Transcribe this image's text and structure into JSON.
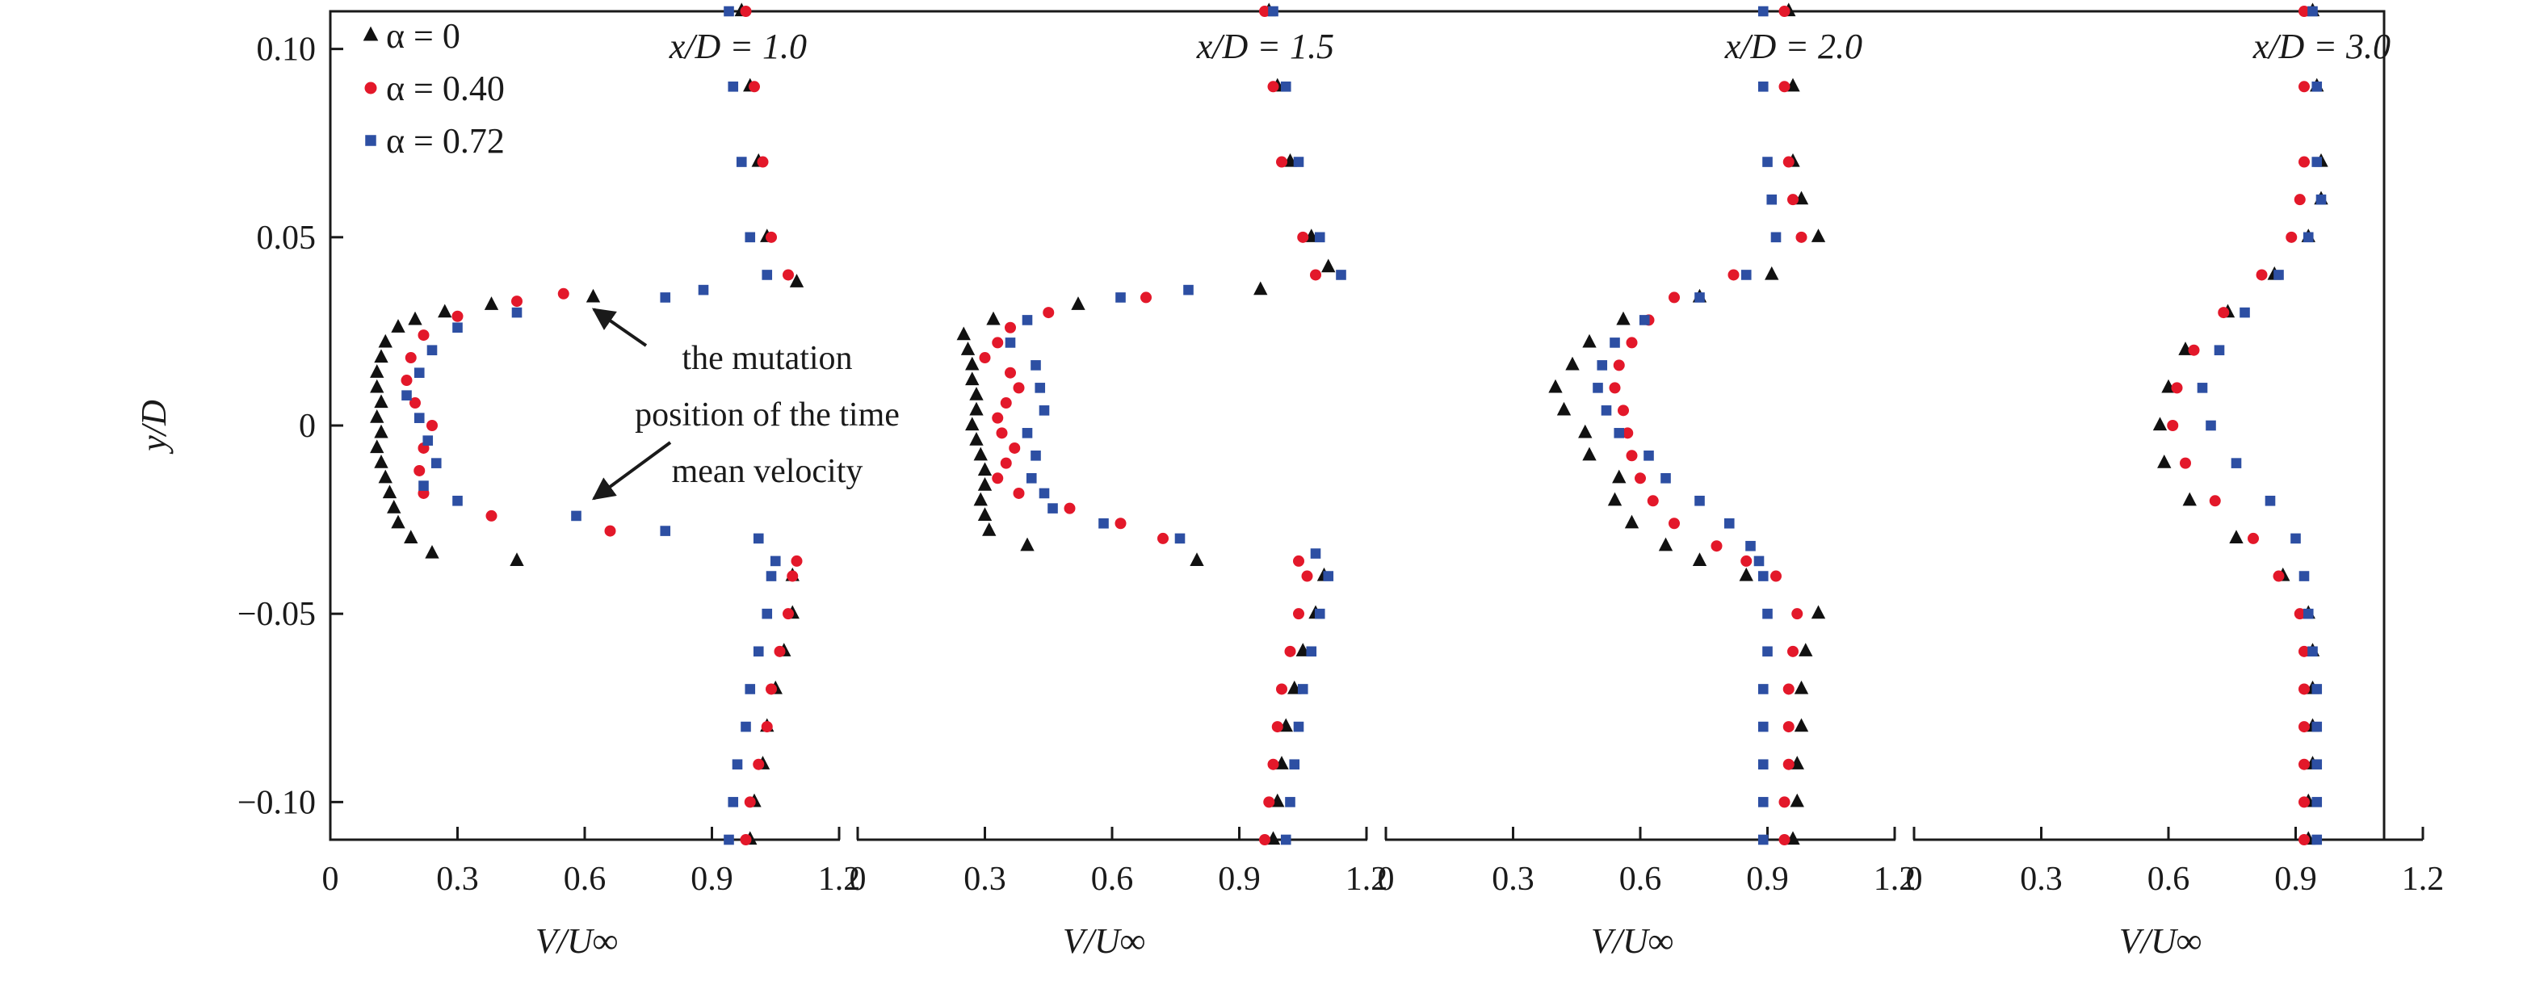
{
  "chart_data": {
    "type": "scatter",
    "title": "",
    "ylabel": "y/D",
    "ylim": [
      -0.11,
      0.11
    ],
    "yticks": [
      -0.1,
      -0.05,
      0,
      0.05,
      0.1
    ],
    "ytick_labels": [
      "−0.10",
      "−0.05",
      "0",
      "0.05",
      "0.10"
    ],
    "legend_position": "top-left",
    "series_styles": [
      {
        "name": "α = 0",
        "marker": "triangle",
        "color": "#111111"
      },
      {
        "name": "α = 0.40",
        "marker": "circle",
        "color": "#e3182a"
      },
      {
        "name": "α = 0.72",
        "marker": "square",
        "color": "#2d4fa3"
      }
    ],
    "annotation": {
      "lines": [
        "the mutation",
        "position of the time",
        "mean velocity"
      ],
      "targets": [
        {
          "x": 0.61,
          "y": 0.033
        },
        {
          "x": 0.61,
          "y": -0.022
        }
      ]
    },
    "panels": [
      {
        "label": "x/D = 1.0",
        "xlabel": "V/U∞",
        "xlim": [
          0,
          1.2
        ],
        "xticks": [
          0,
          0.3,
          0.6,
          0.9,
          1.2
        ],
        "xtick_labels": [
          "0",
          "0.3",
          "0.6",
          "0.9",
          "1.2"
        ],
        "series": [
          {
            "name": "α = 0",
            "y": [
              0.11,
              0.09,
              0.07,
              0.05,
              0.038,
              0.034,
              0.032,
              0.03,
              0.028,
              0.026,
              0.022,
              0.018,
              0.014,
              0.01,
              0.006,
              0.002,
              -0.002,
              -0.006,
              -0.01,
              -0.014,
              -0.018,
              -0.022,
              -0.026,
              -0.03,
              -0.034,
              -0.036,
              -0.04,
              -0.05,
              -0.06,
              -0.07,
              -0.08,
              -0.09,
              -0.1,
              -0.11
            ],
            "x": [
              0.97,
              0.99,
              1.01,
              1.03,
              1.1,
              0.62,
              0.38,
              0.27,
              0.2,
              0.16,
              0.13,
              0.12,
              0.11,
              0.11,
              0.12,
              0.11,
              0.12,
              0.11,
              0.12,
              0.13,
              0.14,
              0.15,
              0.16,
              0.19,
              0.24,
              0.44,
              1.09,
              1.09,
              1.07,
              1.05,
              1.03,
              1.02,
              1.0,
              0.99
            ]
          },
          {
            "name": "α = 0.40",
            "y": [
              0.11,
              0.09,
              0.07,
              0.05,
              0.04,
              0.035,
              0.033,
              0.029,
              0.024,
              0.018,
              0.012,
              0.006,
              0.0,
              -0.006,
              -0.012,
              -0.018,
              -0.024,
              -0.028,
              -0.036,
              -0.04,
              -0.05,
              -0.06,
              -0.07,
              -0.08,
              -0.09,
              -0.1,
              -0.11
            ],
            "x": [
              0.98,
              1.0,
              1.02,
              1.04,
              1.08,
              0.55,
              0.44,
              0.3,
              0.22,
              0.19,
              0.18,
              0.2,
              0.24,
              0.22,
              0.21,
              0.22,
              0.38,
              0.66,
              1.1,
              1.09,
              1.08,
              1.06,
              1.04,
              1.03,
              1.01,
              0.99,
              0.98
            ]
          },
          {
            "name": "α = 0.72",
            "y": [
              0.11,
              0.09,
              0.07,
              0.05,
              0.04,
              0.036,
              0.034,
              0.03,
              0.026,
              0.02,
              0.014,
              0.008,
              0.002,
              -0.004,
              -0.01,
              -0.016,
              -0.02,
              -0.024,
              -0.028,
              -0.03,
              -0.036,
              -0.04,
              -0.05,
              -0.06,
              -0.07,
              -0.08,
              -0.09,
              -0.1,
              -0.11
            ],
            "x": [
              0.94,
              0.95,
              0.97,
              0.99,
              1.03,
              0.88,
              0.79,
              0.44,
              0.3,
              0.24,
              0.21,
              0.18,
              0.21,
              0.23,
              0.25,
              0.22,
              0.3,
              0.58,
              0.79,
              1.01,
              1.05,
              1.04,
              1.03,
              1.01,
              0.99,
              0.98,
              0.96,
              0.95,
              0.94
            ]
          }
        ]
      },
      {
        "label": "x/D = 1.5",
        "xlabel": "V/U∞",
        "xlim": [
          0,
          1.2
        ],
        "xticks": [
          0,
          0.3,
          0.6,
          0.9,
          1.2
        ],
        "xtick_labels": [
          "0",
          "0.3",
          "0.6",
          "0.9",
          "1.2"
        ],
        "series": [
          {
            "name": "α = 0",
            "y": [
              0.11,
              0.09,
              0.07,
              0.05,
              0.042,
              0.036,
              0.032,
              0.028,
              0.024,
              0.02,
              0.016,
              0.012,
              0.008,
              0.004,
              0.0,
              -0.004,
              -0.008,
              -0.012,
              -0.016,
              -0.02,
              -0.024,
              -0.028,
              -0.032,
              -0.036,
              -0.04,
              -0.05,
              -0.06,
              -0.07,
              -0.08,
              -0.09,
              -0.1,
              -0.11
            ],
            "x": [
              0.97,
              0.99,
              1.02,
              1.07,
              1.11,
              0.95,
              0.52,
              0.32,
              0.25,
              0.26,
              0.27,
              0.27,
              0.28,
              0.28,
              0.27,
              0.28,
              0.29,
              0.3,
              0.3,
              0.29,
              0.3,
              0.31,
              0.4,
              0.8,
              1.1,
              1.08,
              1.05,
              1.03,
              1.01,
              1.0,
              0.99,
              0.98
            ]
          },
          {
            "name": "α = 0.40",
            "y": [
              0.11,
              0.09,
              0.07,
              0.05,
              0.04,
              0.034,
              0.03,
              0.026,
              0.022,
              0.018,
              0.014,
              0.01,
              0.006,
              0.002,
              -0.002,
              -0.006,
              -0.01,
              -0.014,
              -0.018,
              -0.022,
              -0.026,
              -0.03,
              -0.036,
              -0.04,
              -0.05,
              -0.06,
              -0.07,
              -0.08,
              -0.09,
              -0.1,
              -0.11
            ],
            "x": [
              0.96,
              0.98,
              1.0,
              1.05,
              1.08,
              0.68,
              0.45,
              0.36,
              0.33,
              0.3,
              0.36,
              0.38,
              0.35,
              0.33,
              0.34,
              0.37,
              0.35,
              0.33,
              0.38,
              0.5,
              0.62,
              0.72,
              1.04,
              1.06,
              1.04,
              1.02,
              1.0,
              0.99,
              0.98,
              0.97,
              0.96
            ]
          },
          {
            "name": "α = 0.72",
            "y": [
              0.11,
              0.09,
              0.07,
              0.05,
              0.04,
              0.036,
              0.034,
              0.028,
              0.022,
              0.016,
              0.01,
              0.004,
              -0.002,
              -0.008,
              -0.014,
              -0.018,
              -0.022,
              -0.026,
              -0.03,
              -0.034,
              -0.04,
              -0.05,
              -0.06,
              -0.07,
              -0.08,
              -0.09,
              -0.1,
              -0.11
            ],
            "x": [
              0.98,
              1.01,
              1.04,
              1.09,
              1.14,
              0.78,
              0.62,
              0.4,
              0.36,
              0.42,
              0.43,
              0.44,
              0.4,
              0.42,
              0.41,
              0.44,
              0.46,
              0.58,
              0.76,
              1.08,
              1.11,
              1.09,
              1.07,
              1.05,
              1.04,
              1.03,
              1.02,
              1.01
            ]
          }
        ]
      },
      {
        "label": "x/D = 2.0",
        "xlabel": "V/U∞",
        "xlim": [
          0,
          1.2
        ],
        "xticks": [
          0,
          0.3,
          0.6,
          0.9,
          1.2
        ],
        "xtick_labels": [
          "0",
          "0.3",
          "0.6",
          "0.9",
          "1.2"
        ],
        "series": [
          {
            "name": "α = 0",
            "y": [
              0.11,
              0.09,
              0.07,
              0.06,
              0.05,
              0.04,
              0.034,
              0.028,
              0.022,
              0.016,
              0.01,
              0.004,
              -0.002,
              -0.008,
              -0.014,
              -0.02,
              -0.026,
              -0.032,
              -0.036,
              -0.04,
              -0.05,
              -0.06,
              -0.07,
              -0.08,
              -0.09,
              -0.1,
              -0.11
            ],
            "x": [
              0.95,
              0.96,
              0.96,
              0.98,
              1.02,
              0.91,
              0.74,
              0.56,
              0.48,
              0.44,
              0.4,
              0.42,
              0.47,
              0.48,
              0.55,
              0.54,
              0.58,
              0.66,
              0.74,
              0.85,
              1.02,
              0.99,
              0.98,
              0.98,
              0.97,
              0.97,
              0.96
            ]
          },
          {
            "name": "α = 0.40",
            "y": [
              0.11,
              0.09,
              0.07,
              0.06,
              0.05,
              0.04,
              0.034,
              0.028,
              0.022,
              0.016,
              0.01,
              0.004,
              -0.002,
              -0.008,
              -0.014,
              -0.02,
              -0.026,
              -0.032,
              -0.036,
              -0.04,
              -0.05,
              -0.06,
              -0.07,
              -0.08,
              -0.09,
              -0.1,
              -0.11
            ],
            "x": [
              0.94,
              0.94,
              0.95,
              0.96,
              0.98,
              0.82,
              0.68,
              0.62,
              0.58,
              0.55,
              0.54,
              0.56,
              0.57,
              0.58,
              0.6,
              0.63,
              0.68,
              0.78,
              0.85,
              0.92,
              0.97,
              0.96,
              0.95,
              0.95,
              0.95,
              0.94,
              0.94
            ]
          },
          {
            "name": "α = 0.72",
            "y": [
              0.11,
              0.09,
              0.07,
              0.06,
              0.05,
              0.04,
              0.034,
              0.028,
              0.022,
              0.016,
              0.01,
              0.004,
              -0.002,
              -0.008,
              -0.014,
              -0.02,
              -0.026,
              -0.032,
              -0.036,
              -0.04,
              -0.05,
              -0.06,
              -0.07,
              -0.08,
              -0.09,
              -0.1,
              -0.11
            ],
            "x": [
              0.89,
              0.89,
              0.9,
              0.91,
              0.92,
              0.85,
              0.74,
              0.61,
              0.54,
              0.51,
              0.5,
              0.52,
              0.55,
              0.62,
              0.66,
              0.74,
              0.81,
              0.86,
              0.88,
              0.89,
              0.9,
              0.9,
              0.89,
              0.89,
              0.89,
              0.89,
              0.89
            ]
          }
        ]
      },
      {
        "label": "x/D = 3.0",
        "xlabel": "V/U∞",
        "xlim": [
          0,
          1.2
        ],
        "xticks": [
          0,
          0.3,
          0.6,
          0.9,
          1.2
        ],
        "xtick_labels": [
          "0",
          "0.3",
          "0.6",
          "0.9",
          "1.2"
        ],
        "series": [
          {
            "name": "α = 0",
            "y": [
              0.11,
              0.09,
              0.07,
              0.06,
              0.05,
              0.04,
              0.03,
              0.02,
              0.01,
              0.0,
              -0.01,
              -0.02,
              -0.03,
              -0.04,
              -0.05,
              -0.06,
              -0.07,
              -0.08,
              -0.09,
              -0.1,
              -0.11
            ],
            "x": [
              0.94,
              0.95,
              0.96,
              0.96,
              0.93,
              0.85,
              0.74,
              0.64,
              0.6,
              0.58,
              0.59,
              0.65,
              0.76,
              0.87,
              0.93,
              0.94,
              0.94,
              0.94,
              0.94,
              0.93,
              0.93
            ]
          },
          {
            "name": "α = 0.40",
            "y": [
              0.11,
              0.09,
              0.07,
              0.06,
              0.05,
              0.04,
              0.03,
              0.02,
              0.01,
              0.0,
              -0.01,
              -0.02,
              -0.03,
              -0.04,
              -0.05,
              -0.06,
              -0.07,
              -0.08,
              -0.09,
              -0.1,
              -0.11
            ],
            "x": [
              0.92,
              0.92,
              0.92,
              0.91,
              0.89,
              0.82,
              0.73,
              0.66,
              0.62,
              0.61,
              0.64,
              0.71,
              0.8,
              0.86,
              0.91,
              0.92,
              0.92,
              0.92,
              0.92,
              0.92,
              0.92
            ]
          },
          {
            "name": "α = 0.72",
            "y": [
              0.11,
              0.09,
              0.07,
              0.06,
              0.05,
              0.04,
              0.03,
              0.02,
              0.01,
              0.0,
              -0.01,
              -0.02,
              -0.03,
              -0.04,
              -0.05,
              -0.06,
              -0.07,
              -0.08,
              -0.09,
              -0.1,
              -0.11
            ],
            "x": [
              0.94,
              0.95,
              0.95,
              0.96,
              0.93,
              0.86,
              0.78,
              0.72,
              0.68,
              0.7,
              0.76,
              0.84,
              0.9,
              0.92,
              0.93,
              0.94,
              0.95,
              0.95,
              0.95,
              0.95,
              0.95
            ]
          }
        ]
      }
    ]
  }
}
